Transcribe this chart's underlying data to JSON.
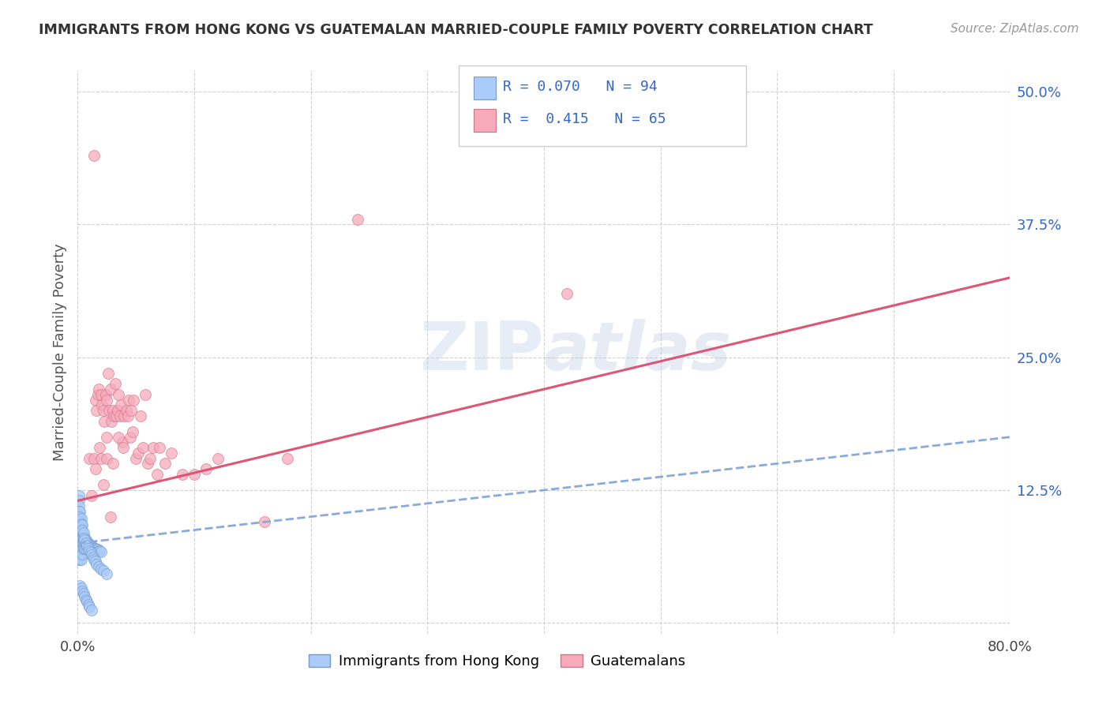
{
  "title": "IMMIGRANTS FROM HONG KONG VS GUATEMALAN MARRIED-COUPLE FAMILY POVERTY CORRELATION CHART",
  "source": "Source: ZipAtlas.com",
  "ylabel": "Married-Couple Family Poverty",
  "xlim": [
    0.0,
    0.8
  ],
  "ylim": [
    -0.01,
    0.52
  ],
  "xticks": [
    0.0,
    0.1,
    0.2,
    0.3,
    0.4,
    0.5,
    0.6,
    0.7,
    0.8
  ],
  "xtick_labels": [
    "0.0%",
    "",
    "",
    "",
    "",
    "",
    "",
    "",
    "80.0%"
  ],
  "ytick_labels": [
    "",
    "12.5%",
    "25.0%",
    "37.5%",
    "50.0%"
  ],
  "ytick_positions": [
    0.0,
    0.125,
    0.25,
    0.375,
    0.5
  ],
  "hk_color": "#aaccf8",
  "hk_edge_color": "#7799cc",
  "gt_color": "#f8aabb",
  "gt_edge_color": "#cc7788",
  "hk_line_color": "#88aadd",
  "gt_line_color": "#dd5577",
  "legend_text_color": "#3366cc",
  "hk_R": 0.07,
  "hk_N": 94,
  "gt_R": 0.415,
  "gt_N": 65,
  "hk_x": [
    0.001,
    0.001,
    0.001,
    0.001,
    0.001,
    0.001,
    0.001,
    0.001,
    0.002,
    0.002,
    0.002,
    0.002,
    0.002,
    0.002,
    0.002,
    0.002,
    0.003,
    0.003,
    0.003,
    0.003,
    0.003,
    0.003,
    0.003,
    0.004,
    0.004,
    0.004,
    0.004,
    0.004,
    0.005,
    0.005,
    0.005,
    0.005,
    0.006,
    0.006,
    0.006,
    0.007,
    0.007,
    0.007,
    0.008,
    0.008,
    0.009,
    0.009,
    0.01,
    0.01,
    0.011,
    0.012,
    0.013,
    0.014,
    0.015,
    0.016,
    0.017,
    0.018,
    0.019,
    0.02,
    0.001,
    0.001,
    0.001,
    0.001,
    0.001,
    0.002,
    0.002,
    0.002,
    0.003,
    0.003,
    0.003,
    0.004,
    0.004,
    0.005,
    0.005,
    0.006,
    0.007,
    0.008,
    0.009,
    0.01,
    0.011,
    0.012,
    0.013,
    0.014,
    0.015,
    0.016,
    0.018,
    0.02,
    0.022,
    0.025,
    0.002,
    0.003,
    0.004,
    0.005,
    0.006,
    0.007,
    0.008,
    0.009,
    0.01,
    0.012
  ],
  "hk_y": [
    0.095,
    0.09,
    0.085,
    0.08,
    0.075,
    0.07,
    0.065,
    0.06,
    0.095,
    0.09,
    0.085,
    0.08,
    0.075,
    0.07,
    0.065,
    0.06,
    0.09,
    0.085,
    0.08,
    0.075,
    0.07,
    0.065,
    0.06,
    0.085,
    0.08,
    0.075,
    0.07,
    0.065,
    0.082,
    0.078,
    0.074,
    0.07,
    0.08,
    0.075,
    0.07,
    0.078,
    0.074,
    0.07,
    0.076,
    0.072,
    0.075,
    0.071,
    0.074,
    0.07,
    0.073,
    0.072,
    0.071,
    0.07,
    0.07,
    0.069,
    0.069,
    0.068,
    0.068,
    0.067,
    0.12,
    0.115,
    0.11,
    0.105,
    0.1,
    0.105,
    0.1,
    0.095,
    0.098,
    0.093,
    0.088,
    0.092,
    0.087,
    0.085,
    0.08,
    0.078,
    0.075,
    0.073,
    0.07,
    0.068,
    0.066,
    0.064,
    0.062,
    0.06,
    0.058,
    0.055,
    0.053,
    0.051,
    0.049,
    0.046,
    0.035,
    0.033,
    0.03,
    0.028,
    0.025,
    0.022,
    0.02,
    0.017,
    0.015,
    0.012
  ],
  "gt_x": [
    0.01,
    0.012,
    0.014,
    0.015,
    0.016,
    0.017,
    0.018,
    0.019,
    0.02,
    0.021,
    0.022,
    0.023,
    0.024,
    0.025,
    0.025,
    0.026,
    0.027,
    0.028,
    0.029,
    0.03,
    0.031,
    0.032,
    0.033,
    0.034,
    0.035,
    0.036,
    0.037,
    0.038,
    0.039,
    0.04,
    0.042,
    0.043,
    0.044,
    0.045,
    0.046,
    0.047,
    0.048,
    0.05,
    0.052,
    0.054,
    0.056,
    0.058,
    0.06,
    0.062,
    0.065,
    0.068,
    0.07,
    0.075,
    0.08,
    0.09,
    0.1,
    0.11,
    0.12,
    0.015,
    0.02,
    0.025,
    0.03,
    0.035,
    0.18,
    0.24,
    0.42,
    0.16,
    0.014,
    0.022,
    0.028
  ],
  "gt_y": [
    0.155,
    0.12,
    0.155,
    0.21,
    0.2,
    0.215,
    0.22,
    0.165,
    0.215,
    0.205,
    0.2,
    0.19,
    0.215,
    0.175,
    0.21,
    0.235,
    0.2,
    0.22,
    0.19,
    0.2,
    0.195,
    0.225,
    0.195,
    0.2,
    0.215,
    0.195,
    0.205,
    0.17,
    0.165,
    0.195,
    0.2,
    0.195,
    0.21,
    0.175,
    0.2,
    0.18,
    0.21,
    0.155,
    0.16,
    0.195,
    0.165,
    0.215,
    0.15,
    0.155,
    0.165,
    0.14,
    0.165,
    0.15,
    0.16,
    0.14,
    0.14,
    0.145,
    0.155,
    0.145,
    0.155,
    0.155,
    0.15,
    0.175,
    0.155,
    0.38,
    0.31,
    0.095,
    0.44,
    0.13,
    0.1
  ]
}
